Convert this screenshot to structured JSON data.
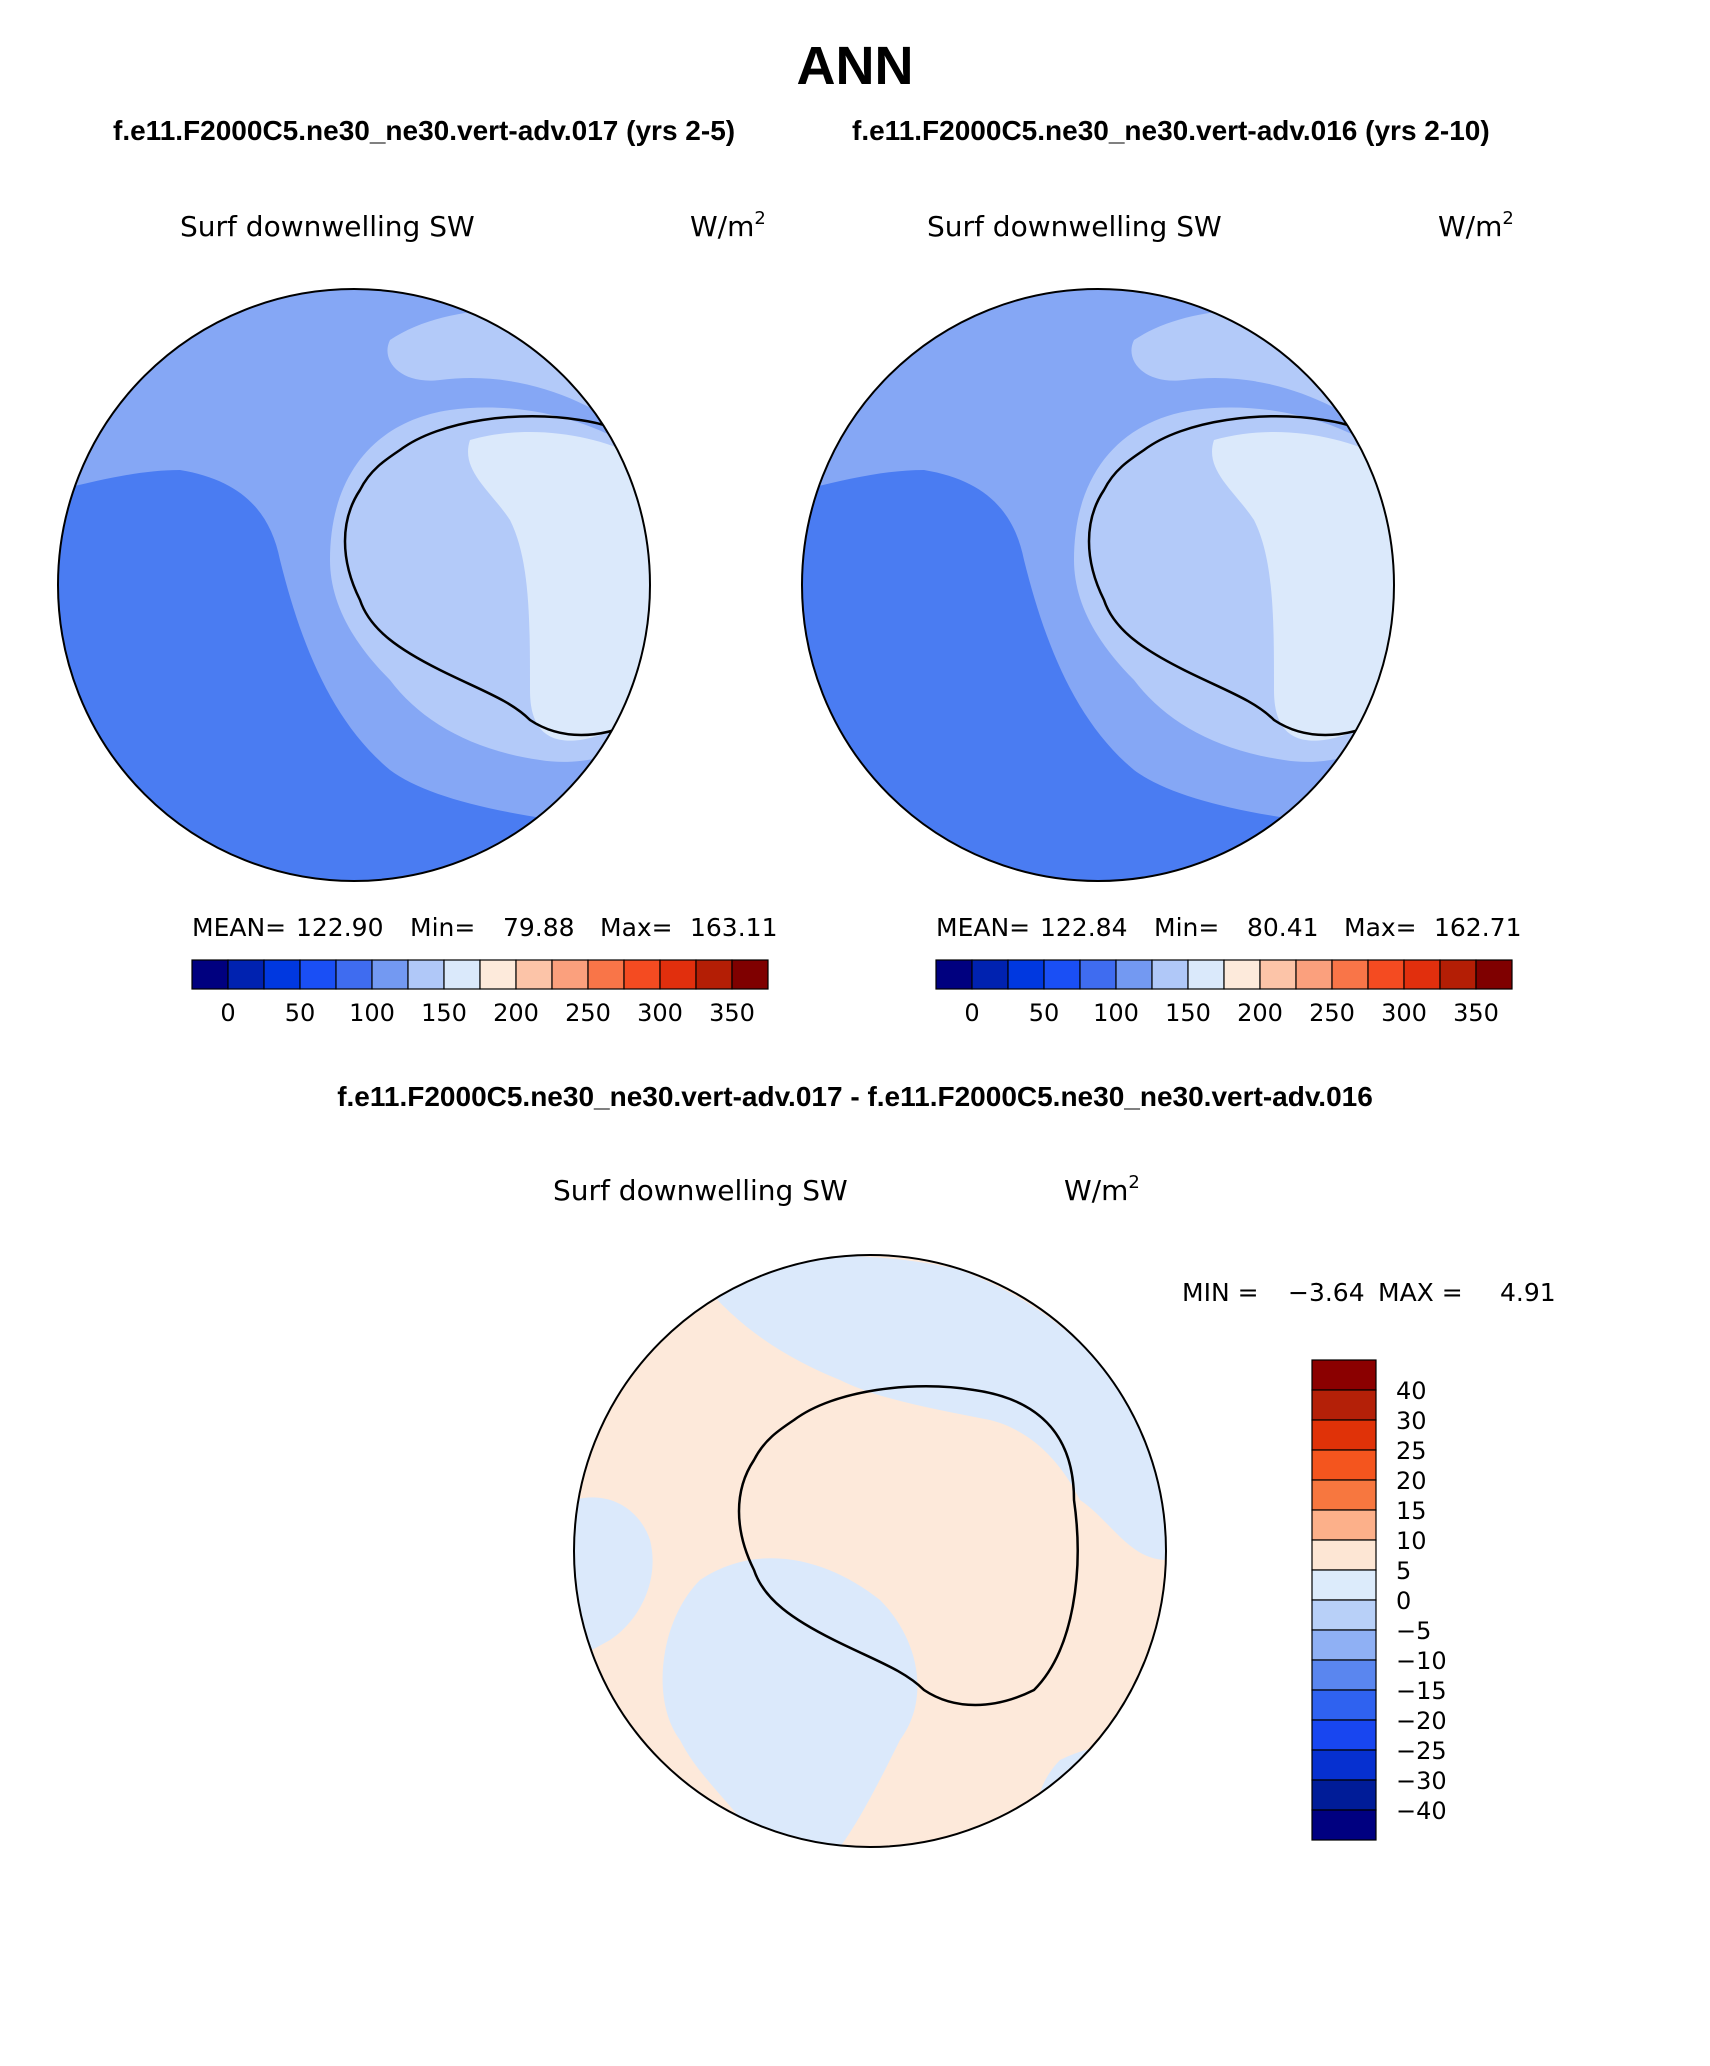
{
  "title": "ANN",
  "subtitle_left": "f.e11.F2000C5.ne30_ne30.vert-adv.017 (yrs 2-5)",
  "subtitle_right": "f.e11.F2000C5.ne30_ne30.vert-adv.016 (yrs 2-10)",
  "diff_title": "f.e11.F2000C5.ne30_ne30.vert-adv.017 - f.e11.F2000C5.ne30_ne30.vert-adv.016",
  "chart_data": [
    {
      "type": "polar-map",
      "variable": "Surf downwelling SW",
      "units": "W/m",
      "units_sup": "2",
      "stats": {
        "mean_label": "MEAN=",
        "mean": "122.90",
        "min_label": "Min=",
        "min": "79.88",
        "max_label": "Max=",
        "max": "163.11"
      },
      "colorbar": {
        "colors": [
          "#00007f",
          "#0022b0",
          "#0038e0",
          "#1a4ff5",
          "#3f6cf0",
          "#7399f2",
          "#b0c8f8",
          "#dae9fb",
          "#fdeadb",
          "#fcc4a8",
          "#fba07d",
          "#f97548",
          "#f44b21",
          "#e12f0d",
          "#b41e05",
          "#7f0000"
        ],
        "ticks": [
          "0",
          "50",
          "100",
          "150",
          "200",
          "250",
          "300",
          "350"
        ]
      }
    },
    {
      "type": "polar-map",
      "variable": "Surf downwelling SW",
      "units": "W/m",
      "units_sup": "2",
      "stats": {
        "mean_label": "MEAN=",
        "mean": "122.84",
        "min_label": "Min=",
        "min": "80.41",
        "max_label": "Max=",
        "max": "162.71"
      },
      "colorbar": {
        "colors": [
          "#00007f",
          "#0022b0",
          "#0038e0",
          "#1a4ff5",
          "#3f6cf0",
          "#7399f2",
          "#b0c8f8",
          "#dae9fb",
          "#fdeadb",
          "#fcc4a8",
          "#fba07d",
          "#f97548",
          "#f44b21",
          "#e12f0d",
          "#b41e05",
          "#7f0000"
        ],
        "ticks": [
          "0",
          "50",
          "100",
          "150",
          "200",
          "250",
          "300",
          "350"
        ]
      }
    },
    {
      "type": "polar-map-difference",
      "variable": "Surf downwelling SW",
      "units": "W/m",
      "units_sup": "2",
      "stats": {
        "min_label": "MIN =",
        "min": "−3.64",
        "max_label": "MAX =",
        "max": "4.91"
      },
      "colorbar": {
        "colors": [
          "#8b0000",
          "#b42008",
          "#e03208",
          "#f4551e",
          "#f7773f",
          "#fcb08a",
          "#fde6d4",
          "#dcebfb",
          "#b8d0f8",
          "#8fb0f4",
          "#5a86ef",
          "#2f62f0",
          "#1846f0",
          "#0630d0",
          "#001c98",
          "#000080"
        ],
        "ticks": [
          "40",
          "30",
          "25",
          "20",
          "15",
          "10",
          "5",
          "0",
          "−5",
          "−10",
          "−15",
          "−20",
          "−25",
          "−30",
          "−40"
        ]
      }
    }
  ]
}
